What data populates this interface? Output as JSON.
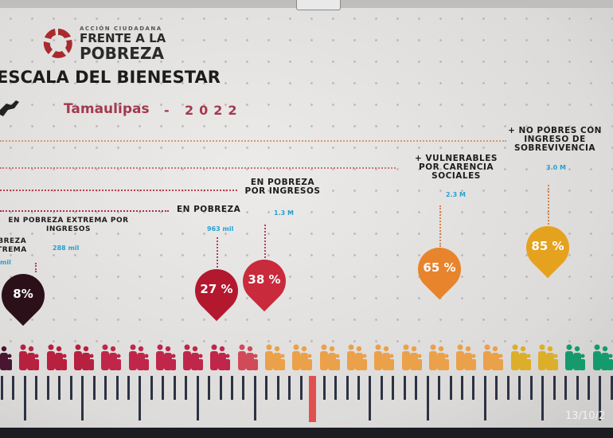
{
  "header": {
    "logo_small": "ACCIÓN CIUDADANA",
    "logo_line1": "FRENTE A LA",
    "logo_line2": "POBREZA",
    "title": "ESCALA DEL BIENESTAR",
    "state": "Tamaulipas",
    "separator": "-",
    "year": "2022"
  },
  "levels": [
    {
      "label": "POBREZA EXTREMA",
      "value": "mil",
      "pct": "8%",
      "color": "#2b1019"
    },
    {
      "label": "EN POBREZA EXTREMA POR INGRESOS",
      "value": "288 mil"
    },
    {
      "label": "EN POBREZA",
      "value": "963 mil",
      "pct": "27 %",
      "color": "#b3182f"
    },
    {
      "label": "EN POBREZA POR INGRESOS",
      "value": "1.3 M",
      "pct": "38 %",
      "color": "#c92a3c"
    },
    {
      "label": "+ VULNERABLES POR CARENCIA SOCIALES",
      "value": "2.3 M",
      "pct": "65 %",
      "color": "#e8842c"
    },
    {
      "label": "+ NO POBRES CON INGRESO DE SOBREVIVENCIA",
      "value": "3.0 M",
      "pct": "85 %",
      "color": "#e5a21f"
    }
  ],
  "people_colors": [
    "#4a1530",
    "#b8203f",
    "#b8203f",
    "#b8203f",
    "#c0264a",
    "#c0264a",
    "#c0264a",
    "#c0264a",
    "#c0264a",
    "#d04a5a",
    "#eba04a",
    "#eba04a",
    "#eba04a",
    "#eba04a",
    "#eba04a",
    "#eba04a",
    "#eba04a",
    "#eba04a",
    "#eba04a",
    "#dcae2a",
    "#dcae2a",
    "#159a6e",
    "#159a6e"
  ],
  "timestamp": "13/10/2"
}
